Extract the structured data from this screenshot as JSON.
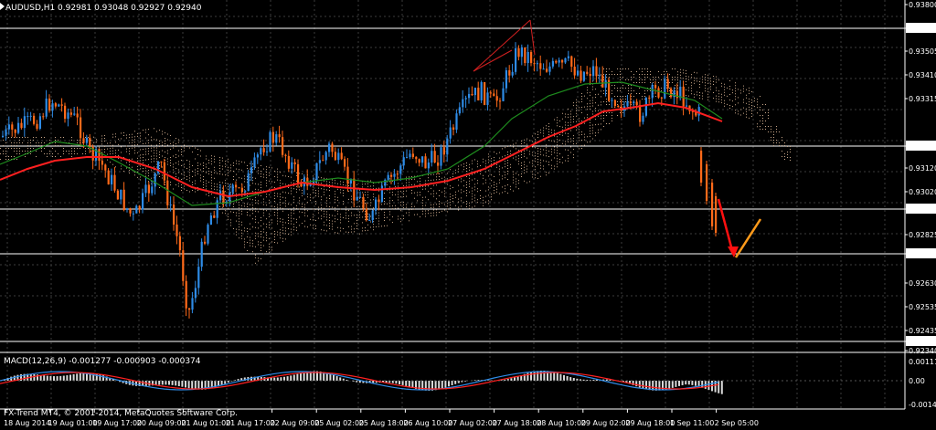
{
  "header": {
    "symbol_tf": "AUDUSD,H1",
    "ohlc": "0.92981 0.93048 0.92927 0.92940"
  },
  "price_axis": {
    "ticks": [
      "0.93800",
      "0.93711",
      "0.93505",
      "0.93410",
      "0.93315",
      "0.93197",
      "0.93120",
      "0.93020",
      "0.92940",
      "0.92825",
      "0.92747",
      "0.92630",
      "0.92535",
      "0.92435",
      "0.92377",
      "0.92340"
    ],
    "marked": [
      "0.93711",
      "0.93197",
      "0.92940",
      "0.92747",
      "0.92377"
    ]
  },
  "time_axis": {
    "labels": [
      "18 Aug 2014",
      "19 Aug 01:00",
      "19 Aug 17:00",
      "20 Aug 09:00",
      "21 Aug 01:00",
      "21 Aug 17:00",
      "22 Aug 09:00",
      "25 Aug 02:00",
      "25 Aug 18:00",
      "26 Aug 10:00",
      "27 Aug 02:00",
      "27 Aug 18:00",
      "28 Aug 10:00",
      "29 Aug 02:00",
      "29 Aug 18:00",
      "1 Sep 11:00",
      "2 Sep 05:00"
    ]
  },
  "macd": {
    "label": "MACD(12,26,9) -0.001277 -0.000903 -0.000374",
    "ticks": [
      "0.00111",
      "0.00",
      "-0.00144"
    ]
  },
  "footer": {
    "copyright": "FX-Trend MT4, © 2001-2014, MetaQuotes Software Corp."
  },
  "colors": {
    "bull": "#2e8be6",
    "bear": "#ff6a1a",
    "ma_red": "#ff2020",
    "ma_green": "#1e8c1e",
    "cloud": "#c8a688"
  }
}
